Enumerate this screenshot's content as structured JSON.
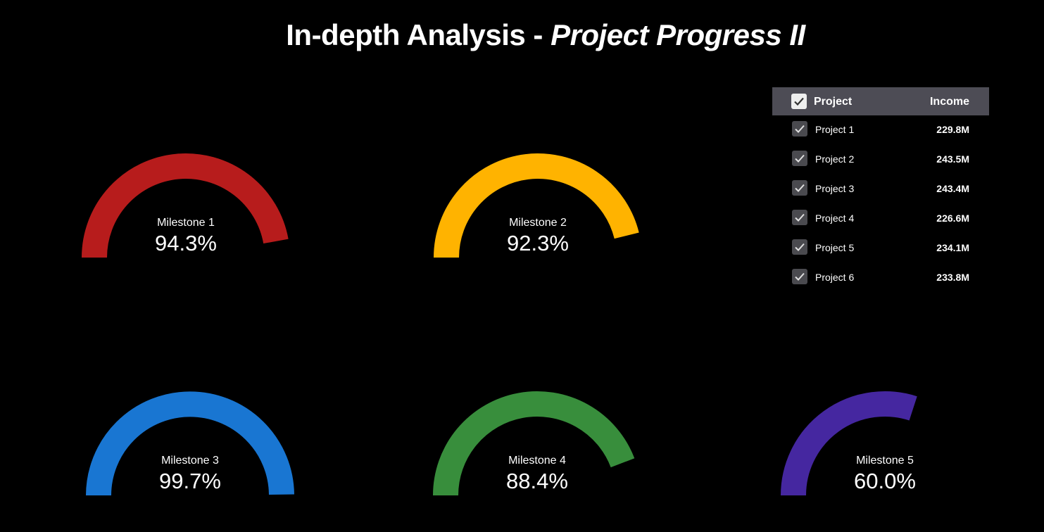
{
  "title": {
    "main": "In-depth Analysis - ",
    "emphasis": "Project Progress II"
  },
  "gauges": [
    {
      "label": "Milestone 1",
      "value_text": "94.3%",
      "value": 94.3,
      "color": "#b71c1c"
    },
    {
      "label": "Milestone 2",
      "value_text": "92.3%",
      "value": 92.3,
      "color": "#ffb300"
    },
    {
      "label": "Milestone 3",
      "value_text": "99.7%",
      "value": 99.7,
      "color": "#1976d2"
    },
    {
      "label": "Milestone 4",
      "value_text": "88.4%",
      "value": 88.4,
      "color": "#388e3c"
    },
    {
      "label": "Milestone 5",
      "value_text": "60.0%",
      "value": 60.0,
      "color": "#4527a0"
    }
  ],
  "table": {
    "headers": {
      "project": "Project",
      "income": "Income"
    },
    "rows": [
      {
        "project": "Project 1",
        "income": "229.8M",
        "checked": true
      },
      {
        "project": "Project 2",
        "income": "243.5M",
        "checked": true
      },
      {
        "project": "Project 3",
        "income": "243.4M",
        "checked": true
      },
      {
        "project": "Project 4",
        "income": "226.6M",
        "checked": true
      },
      {
        "project": "Project 5",
        "income": "234.1M",
        "checked": true
      },
      {
        "project": "Project 6",
        "income": "233.8M",
        "checked": true
      }
    ]
  },
  "icons": {
    "checkbox": "check-icon"
  }
}
